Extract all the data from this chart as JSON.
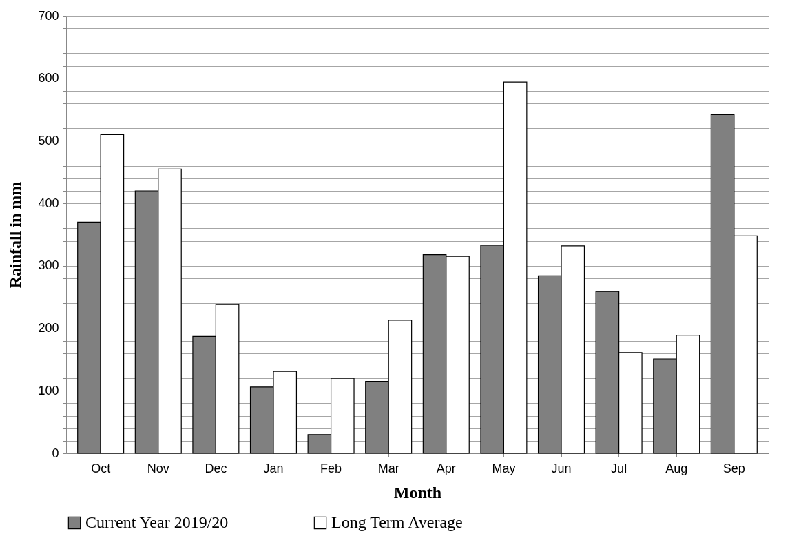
{
  "chart_data": {
    "type": "bar",
    "xlabel": "Month",
    "ylabel": "Rainfall in mm",
    "categories": [
      "Oct",
      "Nov",
      "Dec",
      "Jan",
      "Feb",
      "Mar",
      "Apr",
      "May",
      "Jun",
      "Jul",
      "Aug",
      "Sep"
    ],
    "series": [
      {
        "name": "Current Year 2019/20",
        "color": "#808080",
        "values": [
          370,
          420,
          187,
          106,
          30,
          115,
          318,
          333,
          284,
          259,
          151,
          542
        ]
      },
      {
        "name": "Long Term Average",
        "color": "#ffffff",
        "values": [
          510,
          455,
          238,
          131,
          120,
          213,
          315,
          594,
          332,
          161,
          189,
          348
        ]
      }
    ],
    "ylim": [
      0,
      700
    ],
    "yticks": [
      0,
      {
        "value": 20,
        "label": null
      },
      {
        "value": 40,
        "label": null
      },
      {
        "value": 60,
        "label": null
      },
      {
        "value": 80,
        "label": null
      },
      100,
      {
        "value": 120,
        "label": null
      },
      {
        "value": 140,
        "label": null
      },
      {
        "value": 160,
        "label": null
      },
      {
        "value": 180,
        "label": null
      },
      200,
      {
        "value": 220,
        "label": null
      },
      {
        "value": 240,
        "label": null
      },
      {
        "value": 260,
        "label": null
      },
      {
        "value": 280,
        "label": null
      },
      300,
      {
        "value": 320,
        "label": null
      },
      {
        "value": 340,
        "label": null
      },
      {
        "value": 360,
        "label": null
      },
      {
        "value": 380,
        "label": null
      },
      400,
      {
        "value": 420,
        "label": null
      },
      {
        "value": 440,
        "label": null
      },
      {
        "value": 460,
        "label": null
      },
      {
        "value": 480,
        "label": null
      },
      500,
      {
        "value": 520,
        "label": null
      },
      {
        "value": 540,
        "label": null
      },
      {
        "value": 560,
        "label": null
      },
      {
        "value": 580,
        "label": null
      },
      600,
      {
        "value": 620,
        "label": null
      },
      {
        "value": 640,
        "label": null
      },
      {
        "value": 660,
        "label": null
      },
      {
        "value": 680,
        "label": null
      },
      700
    ],
    "grid": "y",
    "legend": "bottom"
  }
}
